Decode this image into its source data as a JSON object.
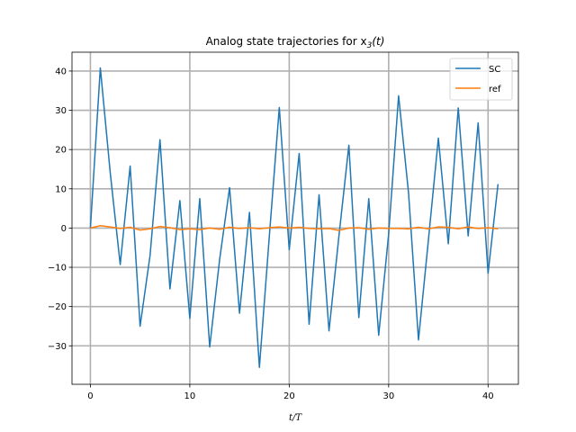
{
  "chart_data": {
    "type": "line",
    "title": "Analog state trajectories for x",
    "title_sub": "3",
    "title_suffix": "(t)",
    "xlabel": "t/T",
    "ylabel": "",
    "xlim": [
      -1.85,
      43.05
    ],
    "ylim": [
      -39.8,
      44.8
    ],
    "xticks": [
      0,
      10,
      20,
      30,
      40
    ],
    "yticks": [
      -30,
      -20,
      -10,
      0,
      10,
      20,
      30,
      40
    ],
    "grid": true,
    "legend_position": "top-right",
    "series": [
      {
        "name": "SC",
        "color": "#1f77b4",
        "x": [
          0,
          1,
          2,
          3,
          4,
          5,
          6,
          7,
          8,
          9,
          10,
          11,
          12,
          13,
          14,
          15,
          16,
          17,
          18,
          19,
          20,
          21,
          22,
          23,
          24,
          25,
          26,
          27,
          28,
          29,
          30,
          31,
          32,
          33,
          34,
          35,
          36,
          37,
          38,
          39,
          40,
          41
        ],
        "y": [
          0,
          40.8,
          14,
          -9.3,
          15.8,
          -25,
          -7,
          22.5,
          -15.5,
          7,
          -23,
          7.5,
          -30.3,
          -8,
          10.3,
          -21.7,
          4,
          -35.5,
          -2,
          30.7,
          -5.5,
          19,
          -24.5,
          8.5,
          -26.2,
          -2,
          21.1,
          -22.8,
          7.5,
          -27.3,
          -1.5,
          33.7,
          9,
          -28.5,
          -3,
          22.9,
          -4,
          30.6,
          -2,
          26.8,
          -11.5,
          11.2
        ]
      },
      {
        "name": "ref",
        "color": "#ff7f0e",
        "x": [
          0,
          1,
          2,
          3,
          4,
          5,
          6,
          7,
          8,
          9,
          10,
          11,
          12,
          13,
          14,
          15,
          16,
          17,
          18,
          19,
          20,
          21,
          22,
          23,
          24,
          25,
          26,
          27,
          28,
          29,
          30,
          31,
          32,
          33,
          34,
          35,
          36,
          37,
          38,
          39,
          40,
          41
        ],
        "y": [
          0,
          0.6,
          0.3,
          -0.1,
          0.2,
          -0.5,
          -0.2,
          0.4,
          0.1,
          -0.4,
          -0.2,
          -0.4,
          0,
          -0.3,
          0.2,
          -0.1,
          0.1,
          -0.2,
          0.1,
          0.3,
          0,
          0.2,
          -0.1,
          -0.2,
          -0.1,
          -0.6,
          0,
          0.1,
          -0.3,
          0,
          -0.1,
          -0.1,
          -0.2,
          0.2,
          -0.2,
          0.3,
          0.2,
          -0.2,
          0.3,
          -0.1,
          0.1,
          -0.2
        ]
      }
    ]
  }
}
